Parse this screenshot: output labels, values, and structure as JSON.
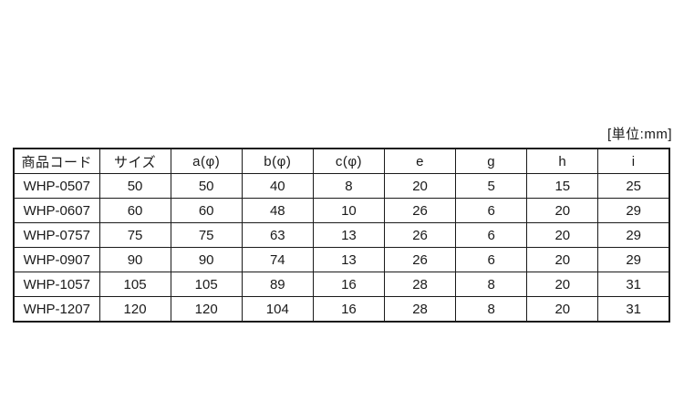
{
  "page": {
    "unit_label": "[単位:mm]"
  },
  "chart_data": {
    "type": "table",
    "unit": "mm",
    "columns": [
      "商品コード",
      "サイズ",
      "a(φ)",
      "b(φ)",
      "c(φ)",
      "e",
      "g",
      "h",
      "i"
    ],
    "rows": [
      [
        "WHP-0507",
        50,
        50,
        40,
        8,
        20,
        5,
        15,
        25
      ],
      [
        "WHP-0607",
        60,
        60,
        48,
        10,
        26,
        6,
        20,
        29
      ],
      [
        "WHP-0757",
        75,
        75,
        63,
        13,
        26,
        6,
        20,
        29
      ],
      [
        "WHP-0907",
        90,
        90,
        74,
        13,
        26,
        6,
        20,
        29
      ],
      [
        "WHP-1057",
        105,
        105,
        89,
        16,
        28,
        8,
        20,
        31
      ],
      [
        "WHP-1207",
        120,
        120,
        104,
        16,
        28,
        8,
        20,
        31
      ]
    ]
  },
  "colors": {
    "text": "#1a1a1a",
    "border": "#1a1a1a",
    "background": "#ffffff"
  }
}
